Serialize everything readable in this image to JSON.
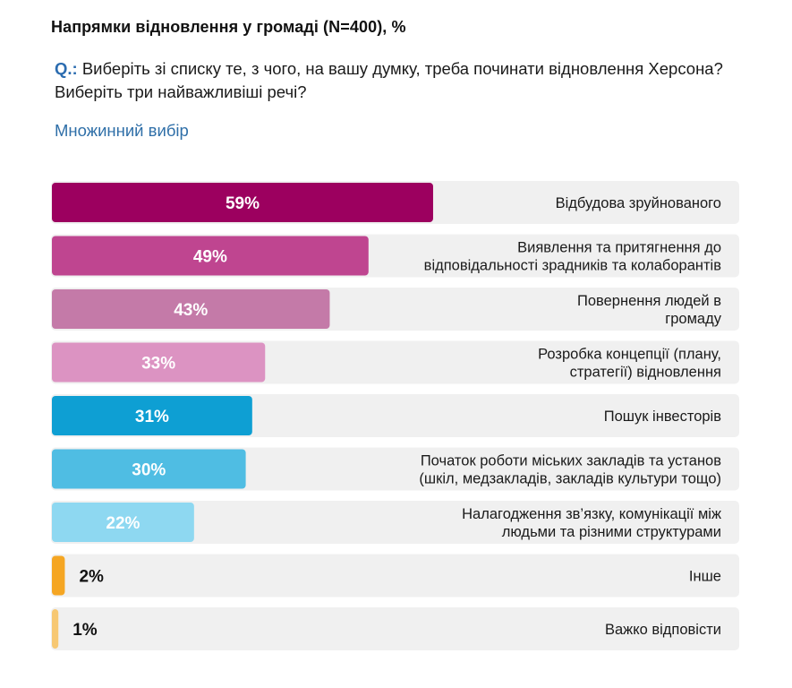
{
  "header": {
    "title": "Напрямки відновлення у громаді (N=400), %",
    "question_prefix": "Q.:",
    "question_text": " Виберіть зі списку те, з чого, на вашу думку, треба починати відновлення Херсона? Виберіть три найважливіші речі?",
    "choice_type": "Множинний вибір"
  },
  "chart_data": {
    "type": "bar",
    "orientation": "horizontal",
    "xlim": [
      0,
      100
    ],
    "grid": false,
    "categories": [
      "Відбудова зруйнованого",
      "Виявлення та притягнення до відповідальності зрадників та колаборантів",
      "Повернення людей в громаду",
      "Розробка концепції (плану, стратегії) відновлення",
      "Пошук інвесторів",
      "Початок роботи міських закладів та установ (шкіл, медзакладів, закладів культури тощо)",
      "Налагодження зв’язку, комунікації між людьми та різними структурами",
      "Інше",
      "Важко відповісти"
    ],
    "category_lines": [
      [
        "Відбудова зруйнованого"
      ],
      [
        "Виявлення та притягнення до",
        "відповідальності зрадників та колаборантів"
      ],
      [
        "Повернення людей в",
        "громаду"
      ],
      [
        "Розробка концепції (плану,",
        "стратегії) відновлення"
      ],
      [
        "Пошук інвесторів"
      ],
      [
        "Початок роботи міських закладів та установ",
        "(шкіл, медзакладів, закладів культури тощо)"
      ],
      [
        "Налагодження зв’язку, комунікації між",
        "людьми та різними структурами"
      ],
      [
        "Інше"
      ],
      [
        "Важко відповісти"
      ]
    ],
    "values": [
      59,
      49,
      43,
      33,
      31,
      30,
      22,
      2,
      1
    ],
    "value_labels": [
      "59%",
      "49%",
      "43%",
      "33%",
      "31%",
      "30%",
      "22%",
      "2%",
      "1%"
    ],
    "colors": [
      "#9c005f",
      "#bf4590",
      "#c47aa8",
      "#dc93c2",
      "#0e9fd3",
      "#4fbde3",
      "#8ed8f1",
      "#f5a623",
      "#f7c873"
    ],
    "track_color": "#f0f0f0"
  }
}
